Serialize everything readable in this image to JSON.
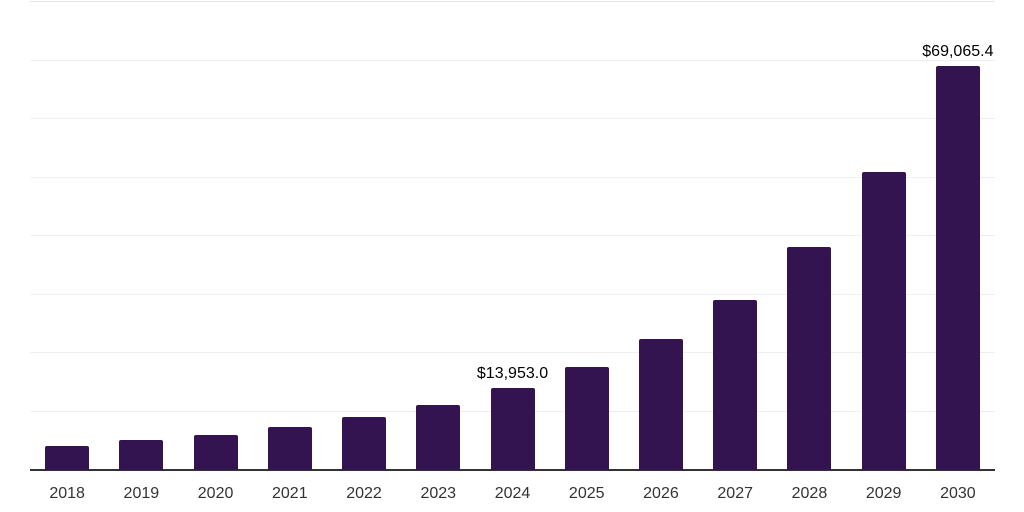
{
  "chart_data": {
    "type": "bar",
    "title": "",
    "xlabel": "",
    "ylabel": "",
    "categories": [
      "2018",
      "2019",
      "2020",
      "2021",
      "2022",
      "2023",
      "2024",
      "2025",
      "2026",
      "2027",
      "2028",
      "2029",
      "2030"
    ],
    "values": [
      4065,
      5090,
      5945,
      7310,
      9090,
      11190,
      13953.0,
      17630,
      22410,
      29120,
      38120,
      50930,
      69065.4
    ],
    "labeled_points": [
      {
        "category": "2024",
        "label": "$13,953.0"
      },
      {
        "category": "2030",
        "label": "$69,065.4"
      }
    ],
    "ylim": [
      0,
      80000
    ],
    "gridline_interval": 10000,
    "grid": "horizontal",
    "legend": "none",
    "colors": {
      "bar": "#341450",
      "gridline": "#efefef",
      "top_gridline": "#e7e7e7",
      "axis_line": "#333333",
      "tick_label": "#333333",
      "data_label": "#000000",
      "background": "#ffffff"
    }
  }
}
